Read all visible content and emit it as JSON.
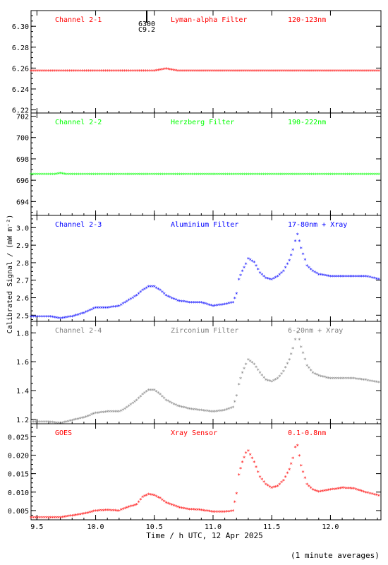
{
  "footnote": "(1 minute averages)",
  "y_axis_label": "Calibrated Signal / (mW m⁻²)",
  "x_axis_label": "Time / h UTC, 12 Apr 2025",
  "x_ticks": [
    "9.5",
    "10.0",
    "10.5",
    "11.0",
    "11.5",
    "12.0"
  ],
  "top_marker": [
    "6300",
    "C9.2"
  ],
  "chart_data": [
    {
      "type": "scatter",
      "color": "#ff0000",
      "labels": [
        "Channel 2-1",
        "Lyman-alpha Filter",
        "120-123nm"
      ],
      "ylim": [
        6.217,
        6.315
      ],
      "xlim": [
        9.45,
        12.43
      ],
      "yticks": [
        "6.22",
        "6.24",
        "6.26",
        "6.28",
        "6.30"
      ],
      "yticks_values": [
        6.22,
        6.24,
        6.26,
        6.28,
        6.3
      ],
      "x": [
        9.45,
        10.5,
        10.55,
        10.6,
        10.65,
        10.7,
        12.43
      ],
      "y": [
        6.257,
        6.257,
        6.258,
        6.259,
        6.258,
        6.257,
        6.257
      ]
    },
    {
      "type": "scatter",
      "color": "#00ff00",
      "labels": [
        "Channel 2-2",
        "Herzberg Filter",
        "190-222nm"
      ],
      "ylim": [
        692.7,
        702.3
      ],
      "xlim": [
        9.45,
        12.43
      ],
      "yticks": [
        "694",
        "696",
        "698",
        "700",
        "702"
      ],
      "yticks_values": [
        694,
        696,
        698,
        700,
        702
      ],
      "x": [
        9.45,
        9.65,
        9.7,
        9.75,
        10.5,
        11.5,
        12.43
      ],
      "y": [
        696.5,
        696.5,
        696.6,
        696.5,
        696.5,
        696.5,
        696.5
      ]
    },
    {
      "type": "scatter",
      "color": "#0000ff",
      "labels": [
        "Channel 2-3",
        "Aluminium Filter",
        "17-80nm + Xray"
      ],
      "ylim": [
        2.465,
        3.07
      ],
      "xlim": [
        9.45,
        12.43
      ],
      "yticks": [
        "2.5",
        "2.6",
        "2.7",
        "2.8",
        "2.9",
        "3.0"
      ],
      "yticks_values": [
        2.5,
        2.6,
        2.7,
        2.8,
        2.9,
        3.0
      ],
      "x": [
        9.45,
        9.6,
        9.7,
        9.8,
        9.9,
        10.0,
        10.1,
        10.2,
        10.25,
        10.3,
        10.35,
        10.4,
        10.45,
        10.5,
        10.55,
        10.6,
        10.7,
        10.8,
        10.9,
        11.0,
        11.1,
        11.17,
        11.2,
        11.22,
        11.25,
        11.28,
        11.3,
        11.35,
        11.4,
        11.45,
        11.5,
        11.55,
        11.6,
        11.65,
        11.68,
        11.7,
        11.72,
        11.75,
        11.8,
        11.85,
        11.9,
        12.0,
        12.1,
        12.2,
        12.3,
        12.43
      ],
      "y": [
        2.49,
        2.49,
        2.48,
        2.49,
        2.51,
        2.54,
        2.54,
        2.55,
        2.57,
        2.59,
        2.61,
        2.64,
        2.66,
        2.66,
        2.64,
        2.61,
        2.58,
        2.57,
        2.57,
        2.55,
        2.56,
        2.57,
        2.62,
        2.7,
        2.75,
        2.79,
        2.82,
        2.8,
        2.74,
        2.71,
        2.7,
        2.72,
        2.75,
        2.81,
        2.87,
        2.92,
        2.96,
        2.88,
        2.78,
        2.75,
        2.73,
        2.72,
        2.72,
        2.72,
        2.72,
        2.7
      ]
    },
    {
      "type": "scatter",
      "color": "#808080",
      "labels": [
        "Channel 2-4",
        "Zirconium Filter",
        "6-20nm + Xray"
      ],
      "ylim": [
        1.17,
        1.88
      ],
      "xlim": [
        9.45,
        12.43
      ],
      "yticks": [
        "1.2",
        "1.4",
        "1.6",
        "1.8"
      ],
      "yticks_values": [
        1.2,
        1.4,
        1.6,
        1.8
      ],
      "x": [
        9.45,
        9.6,
        9.7,
        9.8,
        9.9,
        10.0,
        10.1,
        10.2,
        10.25,
        10.3,
        10.35,
        10.4,
        10.45,
        10.5,
        10.55,
        10.6,
        10.7,
        10.8,
        10.9,
        11.0,
        11.1,
        11.17,
        11.2,
        11.22,
        11.25,
        11.28,
        11.3,
        11.35,
        11.4,
        11.45,
        11.5,
        11.55,
        11.6,
        11.65,
        11.68,
        11.7,
        11.72,
        11.75,
        11.8,
        11.85,
        11.9,
        12.0,
        12.1,
        12.2,
        12.3,
        12.43
      ],
      "y": [
        1.18,
        1.18,
        1.17,
        1.19,
        1.21,
        1.24,
        1.25,
        1.25,
        1.27,
        1.3,
        1.33,
        1.37,
        1.4,
        1.4,
        1.37,
        1.33,
        1.29,
        1.27,
        1.26,
        1.25,
        1.26,
        1.28,
        1.36,
        1.44,
        1.52,
        1.58,
        1.61,
        1.58,
        1.52,
        1.47,
        1.46,
        1.48,
        1.53,
        1.61,
        1.69,
        1.75,
        1.8,
        1.7,
        1.57,
        1.52,
        1.5,
        1.48,
        1.48,
        1.48,
        1.47,
        1.45
      ]
    },
    {
      "type": "scatter",
      "color": "#ff0000",
      "labels": [
        "GOES",
        "Xray Sensor",
        "0.1-0.8nm"
      ],
      "ylim": [
        0.0025,
        0.0285
      ],
      "xlim": [
        9.45,
        12.43
      ],
      "yticks": [
        "0.005",
        "0.010",
        "0.015",
        "0.020",
        "0.025"
      ],
      "yticks_values": [
        0.005,
        0.01,
        0.015,
        0.02,
        0.025
      ],
      "x": [
        9.45,
        9.6,
        9.7,
        9.8,
        9.9,
        10.0,
        10.1,
        10.2,
        10.25,
        10.3,
        10.35,
        10.4,
        10.45,
        10.5,
        10.55,
        10.6,
        10.7,
        10.8,
        10.9,
        11.0,
        11.1,
        11.17,
        11.2,
        11.22,
        11.25,
        11.28,
        11.3,
        11.35,
        11.4,
        11.45,
        11.5,
        11.55,
        11.6,
        11.65,
        11.68,
        11.7,
        11.72,
        11.75,
        11.8,
        11.85,
        11.9,
        12.0,
        12.1,
        12.2,
        12.3,
        12.43
      ],
      "y": [
        0.003,
        0.003,
        0.003,
        0.0035,
        0.004,
        0.0048,
        0.005,
        0.0048,
        0.0055,
        0.006,
        0.0065,
        0.0085,
        0.0093,
        0.009,
        0.0082,
        0.007,
        0.0058,
        0.0052,
        0.005,
        0.0045,
        0.0045,
        0.0048,
        0.0095,
        0.0145,
        0.018,
        0.0205,
        0.021,
        0.018,
        0.014,
        0.012,
        0.011,
        0.0115,
        0.013,
        0.016,
        0.019,
        0.022,
        0.0225,
        0.017,
        0.012,
        0.0105,
        0.01,
        0.0105,
        0.011,
        0.0108,
        0.0098,
        0.0088
      ]
    }
  ]
}
